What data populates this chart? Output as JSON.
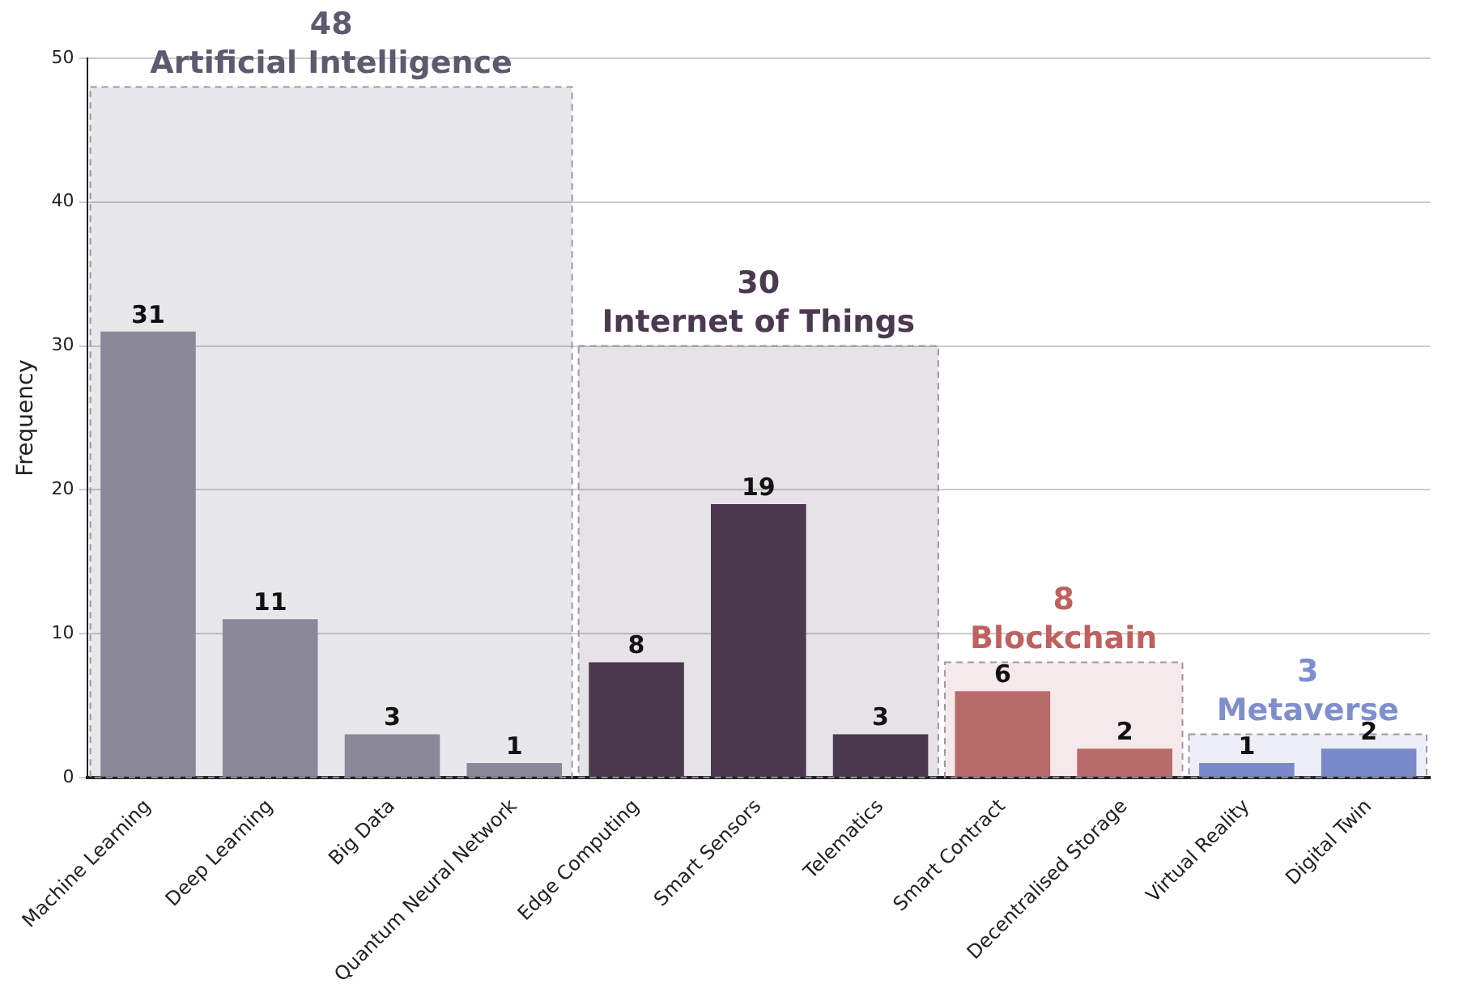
{
  "chart_data": {
    "type": "bar",
    "ylabel": "Frequency",
    "categories": [
      "Machine Learning",
      "Deep Learning",
      "Big Data",
      "Quantum Neural Network",
      "Edge Computing",
      "Smart Sensors",
      "Telematics",
      "Smart Contract",
      "Decentralised Storage",
      "Virtual Reality",
      "Digital Twin"
    ],
    "values": [
      31,
      11,
      3,
      1,
      8,
      19,
      3,
      6,
      2,
      1,
      2
    ],
    "colors": [
      "#8a8899",
      "#8a8899",
      "#8a8899",
      "#8a8899",
      "#4b3a4f",
      "#4b3a4f",
      "#4b3a4f",
      "#b86b6b",
      "#b86b6b",
      "#7a8ac8",
      "#7a8ac8"
    ],
    "ylim": [
      0,
      50
    ],
    "yticks": [
      0,
      10,
      20,
      30,
      40,
      50
    ],
    "grid": "y",
    "data_labels": true,
    "bands": [
      {
        "axis": "x",
        "from": "Machine Learning",
        "to": "Quantum Neural Network",
        "label": "Artificial Intelligence",
        "color": "#5c5a6e"
      },
      {
        "axis": "x",
        "from": "Edge Computing",
        "to": "Telematics",
        "label": "Internet of Things",
        "color": "#4b3a4f"
      },
      {
        "axis": "x",
        "from": "Smart Contract",
        "to": "Decentralised Storage",
        "label": "Blockchain",
        "color": "#c06060"
      },
      {
        "axis": "x",
        "from": "Virtual Reality",
        "to": "Digital Twin",
        "label": "Metaverse",
        "color": "#7f8fcc"
      }
    ],
    "annotations": [
      {
        "text": "48",
        "y": 48
      },
      {
        "text": "30",
        "y": 30
      },
      {
        "text": "8",
        "y": 8
      },
      {
        "text": "3",
        "y": 3
      }
    ]
  }
}
